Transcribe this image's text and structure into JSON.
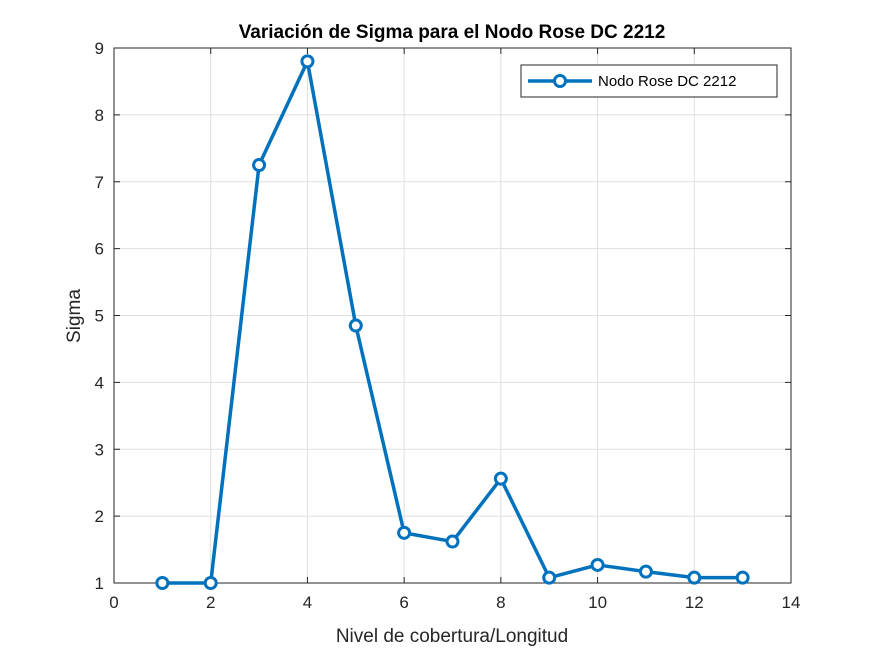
{
  "chart_data": {
    "type": "line",
    "title": "Variación de Sigma para el Nodo Rose DC 2212",
    "xlabel": "Nivel de cobertura/Longitud",
    "ylabel": "Sigma",
    "xlim": [
      0,
      14
    ],
    "ylim": [
      1,
      9
    ],
    "xticks": [
      0,
      2,
      4,
      6,
      8,
      10,
      12,
      14
    ],
    "yticks": [
      1,
      2,
      3,
      4,
      5,
      6,
      7,
      8,
      9
    ],
    "grid": true,
    "legend_position": "top-right",
    "series": [
      {
        "name": "Nodo Rose DC 2212",
        "color": "#0072BD",
        "marker": "circle",
        "x": [
          1,
          2,
          3,
          4,
          5,
          6,
          7,
          8,
          9,
          10,
          11,
          12,
          13
        ],
        "y": [
          1.0,
          1.0,
          7.25,
          8.8,
          4.85,
          1.75,
          1.62,
          2.56,
          1.08,
          1.27,
          1.17,
          1.08,
          1.08
        ]
      }
    ]
  }
}
